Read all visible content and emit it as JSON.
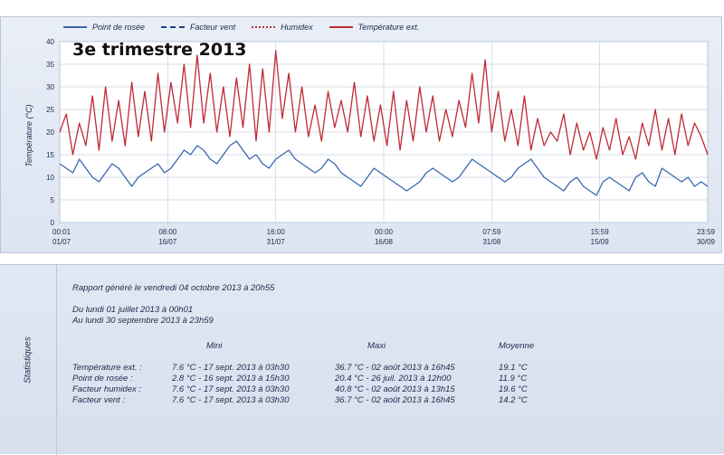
{
  "chart_data": {
    "type": "line",
    "title": "3e trimestre 2013",
    "ylabel": "Température (°C)",
    "ylim": [
      0,
      40
    ],
    "yticks": [
      "0",
      "5",
      "10",
      "15",
      "20",
      "25",
      "30",
      "35",
      "40"
    ],
    "xticks": [
      {
        "time": "00:01",
        "date": "01/07"
      },
      {
        "time": "08:00",
        "date": "16/07"
      },
      {
        "time": "16:00",
        "date": "31/07"
      },
      {
        "time": "00:00",
        "date": "16/08"
      },
      {
        "time": "07:59",
        "date": "31/08"
      },
      {
        "time": "15:59",
        "date": "15/09"
      },
      {
        "time": "23:59",
        "date": "30/09"
      }
    ],
    "legend": [
      {
        "name": "Point de rosée",
        "color": "#3a66b0",
        "style": "solid-blue"
      },
      {
        "name": "Facteur vent",
        "color": "#1c3f8a",
        "style": "dash-navy"
      },
      {
        "name": "Humidex",
        "color": "#c0303a",
        "style": "dot-red"
      },
      {
        "name": "Température ext.",
        "color": "#c02a36",
        "style": "solid-red"
      }
    ],
    "grid": true,
    "series": [
      {
        "name": "Point de rosée",
        "color": "#3a66b0",
        "values": [
          13,
          12,
          11,
          14,
          12,
          10,
          9,
          11,
          13,
          12,
          10,
          8,
          10,
          11,
          12,
          13,
          11,
          12,
          14,
          16,
          15,
          17,
          16,
          14,
          13,
          15,
          17,
          18,
          16,
          14,
          15,
          13,
          12,
          14,
          15,
          16,
          14,
          13,
          12,
          11,
          12,
          14,
          13,
          11,
          10,
          9,
          8,
          10,
          12,
          11,
          10,
          9,
          8,
          7,
          8,
          9,
          11,
          12,
          11,
          10,
          9,
          10,
          12,
          14,
          13,
          12,
          11,
          10,
          9,
          10,
          12,
          13,
          14,
          12,
          10,
          9,
          8,
          7,
          9,
          10,
          8,
          7,
          6,
          9,
          10,
          9,
          8,
          7,
          10,
          11,
          9,
          8,
          12,
          11,
          10,
          9,
          10,
          8,
          9,
          8
        ]
      },
      {
        "name": "Température ext.",
        "color": "#c02a36",
        "values": [
          20,
          24,
          15,
          22,
          17,
          28,
          16,
          30,
          18,
          27,
          17,
          31,
          19,
          29,
          18,
          33,
          20,
          31,
          22,
          35,
          21,
          37,
          22,
          33,
          20,
          30,
          19,
          32,
          21,
          35,
          18,
          34,
          20,
          38,
          23,
          33,
          20,
          30,
          19,
          26,
          18,
          29,
          21,
          27,
          20,
          31,
          19,
          28,
          18,
          26,
          17,
          29,
          16,
          27,
          18,
          30,
          20,
          28,
          18,
          25,
          19,
          27,
          21,
          33,
          22,
          36,
          20,
          29,
          18,
          25,
          17,
          28,
          16,
          23,
          17,
          20,
          18,
          24,
          15,
          22,
          16,
          20,
          14,
          21,
          16,
          23,
          15,
          19,
          14,
          22,
          17,
          25,
          16,
          23,
          15,
          24,
          17,
          22,
          19,
          15
        ]
      }
    ]
  },
  "stats": {
    "side_label": "Statistiques",
    "report_line": "Rapport généré le vendredi 04 octobre 2013 à 20h55",
    "period_from": "Du lundi 01 juillet 2013 à 00h01",
    "period_to": "Au lundi 30 septembre 2013 à 23h59",
    "headers": {
      "mini": "Mini",
      "maxi": "Maxi",
      "moyenne": "Moyenne"
    },
    "rows": [
      {
        "label": "Température ext. :",
        "mini": "7.6 °C - 17 sept. 2013 à 03h30",
        "maxi": "36.7 °C - 02 août 2013 à 16h45",
        "moyenne": "19.1 °C"
      },
      {
        "label": "Point de rosée :",
        "mini": "2.8 °C - 16 sept. 2013 à 15h30",
        "maxi": "20.4 °C - 26 juil. 2013 à 12h00",
        "moyenne": "11.9 °C"
      },
      {
        "label": "Facteur humidex :",
        "mini": "7.6 °C - 17 sept. 2013 à 03h30",
        "maxi": "40.8 °C - 02 août 2013 à 13h15",
        "moyenne": "19.6 °C"
      },
      {
        "label": "Facteur vent :",
        "mini": "7.6 °C - 17 sept. 2013 à 03h30",
        "maxi": "36.7 °C - 02 août 2013 à 16h45",
        "moyenne": "14.2 °C"
      }
    ]
  }
}
